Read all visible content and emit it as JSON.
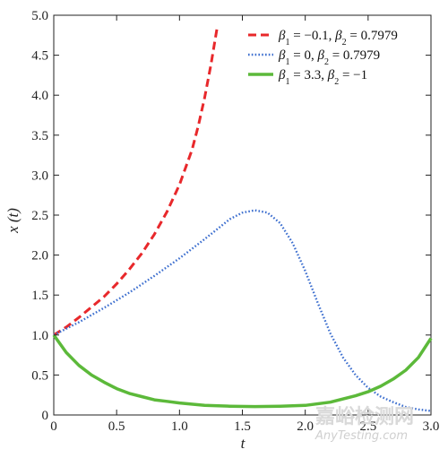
{
  "chart_data": {
    "type": "line",
    "xlabel": "t",
    "ylabel": "x (t)",
    "xlim": [
      0,
      3.0
    ],
    "ylim": [
      0,
      5.0
    ],
    "x_ticks": [
      "0",
      "0.5",
      "1.0",
      "1.5",
      "2.0",
      "2.5",
      "3.0"
    ],
    "y_ticks": [
      "0",
      "0.5",
      "1.0",
      "1.5",
      "2.0",
      "2.5",
      "3.0",
      "3.5",
      "4.0",
      "4.5",
      "5.0"
    ],
    "x_tick_values": [
      0,
      0.5,
      1.0,
      1.5,
      2.0,
      2.5,
      3.0
    ],
    "y_tick_values": [
      0,
      0.5,
      1.0,
      1.5,
      2.0,
      2.5,
      3.0,
      3.5,
      4.0,
      4.5,
      5.0
    ],
    "grid": false,
    "legend_position": "top-right",
    "series": [
      {
        "name": "β1 = −0.1, β2 = 0.7979",
        "label_parts": [
          "β",
          "1",
          " = −0.1, ",
          "β",
          "2",
          " = 0.7979"
        ],
        "color": "#e8282b",
        "style": "dashed",
        "x": [
          0,
          0.1,
          0.2,
          0.3,
          0.4,
          0.5,
          0.6,
          0.7,
          0.8,
          0.9,
          1.0,
          1.1,
          1.15,
          1.2,
          1.25,
          1.3
        ],
        "y": [
          1.0,
          1.1,
          1.22,
          1.35,
          1.48,
          1.64,
          1.82,
          2.02,
          2.26,
          2.54,
          2.88,
          3.32,
          3.62,
          3.97,
          4.38,
          4.85
        ]
      },
      {
        "name": "β1 = 0, β2 = 0.7979",
        "label_parts": [
          "β",
          "1",
          " = 0, ",
          "β",
          "2",
          " = 0.7979"
        ],
        "color": "#3d6fcf",
        "style": "dotted",
        "x": [
          0,
          0.2,
          0.4,
          0.6,
          0.8,
          1.0,
          1.2,
          1.4,
          1.5,
          1.6,
          1.7,
          1.8,
          1.9,
          2.0,
          2.1,
          2.2,
          2.3,
          2.4,
          2.5,
          2.6,
          2.7,
          2.8,
          2.9,
          3.0
        ],
        "y": [
          1.0,
          1.16,
          1.34,
          1.53,
          1.74,
          1.96,
          2.2,
          2.45,
          2.53,
          2.56,
          2.53,
          2.4,
          2.15,
          1.8,
          1.4,
          1.02,
          0.72,
          0.5,
          0.34,
          0.23,
          0.16,
          0.1,
          0.07,
          0.05
        ]
      },
      {
        "name": "β1 = 3.3, β2 = −1",
        "label_parts": [
          "β",
          "1",
          " = 3.3, ",
          "β",
          "2",
          " = −1"
        ],
        "color": "#5cb93a",
        "style": "solid",
        "x": [
          0,
          0.1,
          0.2,
          0.3,
          0.4,
          0.5,
          0.6,
          0.7,
          0.8,
          0.9,
          1.0,
          1.2,
          1.4,
          1.6,
          1.8,
          2.0,
          2.2,
          2.4,
          2.5,
          2.6,
          2.7,
          2.8,
          2.9,
          3.0
        ],
        "y": [
          1.0,
          0.78,
          0.62,
          0.5,
          0.41,
          0.33,
          0.27,
          0.23,
          0.19,
          0.17,
          0.15,
          0.12,
          0.11,
          0.105,
          0.11,
          0.12,
          0.16,
          0.24,
          0.29,
          0.36,
          0.45,
          0.56,
          0.72,
          0.96
        ]
      }
    ]
  },
  "watermark": {
    "cn": "嘉峪检测网",
    "en": "AnyTesting.com"
  }
}
